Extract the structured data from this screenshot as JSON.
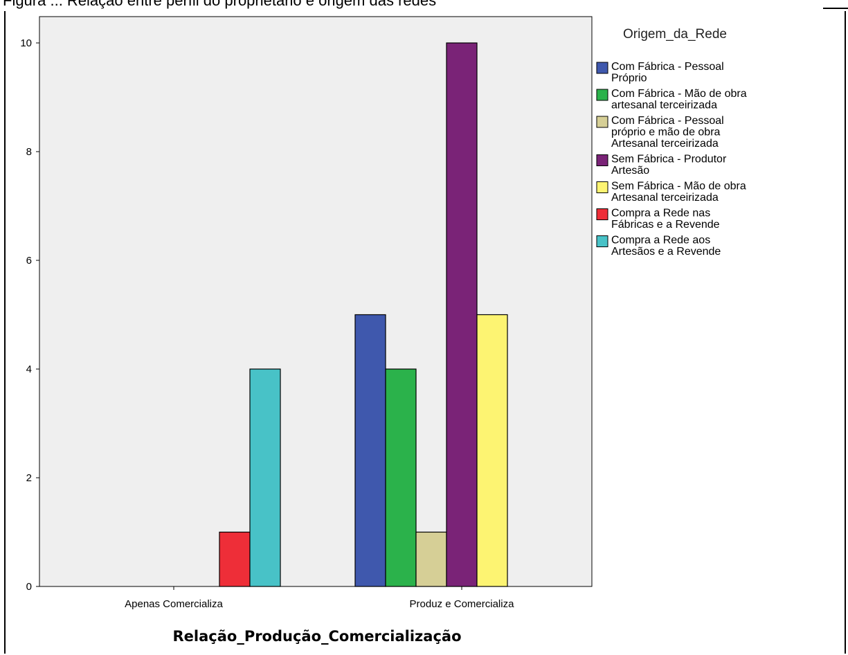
{
  "page": {
    "caption_fragment": "Figura ... Relação entre perfil do proprietário e origem das redes"
  },
  "chart_data": {
    "type": "bar",
    "title": "",
    "xlabel": "Relação_Produção_Comercialização",
    "ylabel": "",
    "ylim": [
      0,
      10.5
    ],
    "yticks": [
      0,
      2,
      4,
      6,
      8,
      10
    ],
    "grid": false,
    "legend_title": "Origem_da_Rede",
    "legend_position": "right",
    "plot_background": "#efefef",
    "categories": [
      "Apenas Comercializa",
      "Produz e Comercializa"
    ],
    "series": [
      {
        "name": "Com Fábrica - Pessoal Próprio",
        "color": "#3f58ad",
        "values": [
          0,
          5
        ]
      },
      {
        "name": "Com Fábrica - Mão de obra artesanal terceirizada",
        "color": "#2bb24b",
        "values": [
          0,
          4
        ]
      },
      {
        "name": "Com Fábrica - Pessoal próprio e mão de obra Artesanal terceirizada",
        "color": "#d6cf96",
        "values": [
          0,
          1
        ]
      },
      {
        "name": "Sem Fábrica - Produtor Artesão",
        "color": "#7a2377",
        "values": [
          0,
          10
        ]
      },
      {
        "name": "Sem Fábrica - Mão de obra Artesanal terceirizada",
        "color": "#fdf472",
        "values": [
          0,
          5
        ]
      },
      {
        "name": "Compra a Rede nas Fábricas e a Revende",
        "color": "#ee2e38",
        "values": [
          1,
          0
        ]
      },
      {
        "name": "Compra a Rede aos Artesãos e a Revende",
        "color": "#48c2c7",
        "values": [
          4,
          0
        ]
      }
    ]
  }
}
